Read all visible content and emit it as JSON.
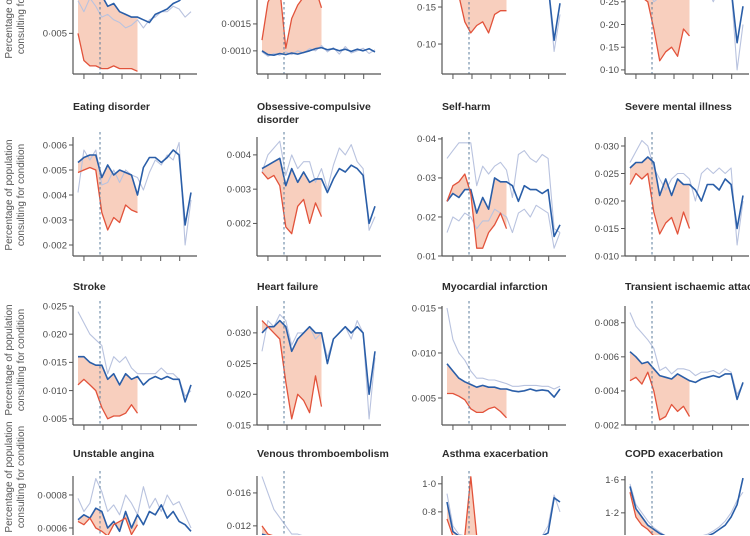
{
  "y_axis_label": [
    "Percentage of population",
    "consulting for condition"
  ],
  "colors": {
    "observed": "#2a5ea8",
    "previous_years": "#b9c3df",
    "lower_bound": "#e2533b",
    "fill": "#f6bfa8",
    "intervention_line": "#5b7c9c"
  },
  "chart_data": [
    {
      "type": "line",
      "title": "",
      "ylim": [
        0.0035,
        0.0066
      ],
      "yticks": [
        0.005
      ],
      "yticklabels": [
        "0·005"
      ],
      "observed": [
        0.0066,
        0.0064,
        0.0066,
        0.0063,
        0.0064,
        0.006,
        0.0061,
        0.0058,
        0.0057,
        0.0056,
        0.0056,
        0.0055,
        0.0054,
        0.0057,
        0.0058,
        0.0059,
        0.0061,
        0.0062,
        0.0064,
        0.0067
      ],
      "lower": [
        0.005,
        0.004,
        0.0038,
        0.0038,
        0.0037,
        0.0037,
        0.0038,
        0.0037,
        0.0037,
        0.0037,
        0.0036
      ],
      "previous_years": [
        [
          0.0062,
          0.0058,
          0.0063,
          0.006,
          0.0056,
          0.0057,
          0.0055,
          0.0054,
          0.0052,
          0.0053,
          0.0055,
          0.0052,
          0.0055,
          0.0056,
          0.0058,
          0.0058,
          0.006,
          0.0059,
          0.0056,
          0.0058
        ]
      ]
    },
    {
      "type": "line",
      "title": "",
      "ylim": [
        0.00057,
        0.00213
      ],
      "yticks": [
        0.0015,
        0.001
      ],
      "yticklabels": [
        "0·0015",
        "0·0010"
      ],
      "observed": [
        0.001,
        0.00093,
        0.00092,
        0.00095,
        0.00093,
        0.00096,
        0.00094,
        0.00097,
        0.001,
        0.00104,
        0.00106,
        0.00102,
        0.00104,
        0.001,
        0.00103,
        0.00099,
        0.00103,
        0.001,
        0.00104,
        0.00098
      ],
      "lower": [
        0.0012,
        0.0019,
        0.00215,
        0.00215,
        0.00105,
        0.0016,
        0.00185,
        0.002,
        0.00215,
        0.00215,
        0.0018
      ],
      "previous_years": [
        [
          0.00098,
          0.0009,
          0.00095,
          0.00092,
          0.00098,
          0.00093,
          0.001,
          0.00096,
          0.00104,
          0.001,
          0.0011,
          0.00098,
          0.00106,
          0.00094,
          0.00108,
          0.00096,
          0.001,
          0.00105,
          0.00095,
          0.00102
        ]
      ]
    },
    {
      "type": "line",
      "title": "",
      "ylim": [
        0.0595,
        0.173
      ],
      "yticks": [
        0.15,
        0.1
      ],
      "yticklabels": [
        "0·15",
        "0·10"
      ],
      "observed": [
        0.18,
        0.18,
        0.18,
        0.18,
        0.18,
        0.18,
        0.18,
        0.18,
        0.18,
        0.165,
        0.18,
        0.18,
        0.18,
        0.18,
        0.18,
        0.18,
        0.18,
        0.18,
        0.105,
        0.155
      ],
      "lower": [
        0.18,
        0.18,
        0.165,
        0.13,
        0.115,
        0.125,
        0.13,
        0.115,
        0.14,
        0.145,
        0.145
      ],
      "previous_years": [
        [
          0.18,
          0.18,
          0.18,
          0.18,
          0.18,
          0.18,
          0.18,
          0.18,
          0.18,
          0.17,
          0.18,
          0.18,
          0.18,
          0.18,
          0.18,
          0.18,
          0.18,
          0.18,
          0.09,
          0.14
        ]
      ]
    },
    {
      "type": "line",
      "title": "",
      "ylim": [
        0.091,
        0.276
      ],
      "yticks": [
        0.25,
        0.2,
        0.15,
        0.1
      ],
      "yticklabels": [
        "0·25",
        "0·20",
        "0·15",
        "0·10"
      ],
      "observed": [
        0.28,
        0.28,
        0.28,
        0.28,
        0.26,
        0.27,
        0.28,
        0.28,
        0.28,
        0.28,
        0.28,
        0.28,
        0.28,
        0.28,
        0.26,
        0.28,
        0.28,
        0.28,
        0.16,
        0.24
      ],
      "lower": [
        0.28,
        0.26,
        0.26,
        0.25,
        0.19,
        0.12,
        0.14,
        0.15,
        0.13,
        0.19,
        0.175
      ],
      "previous_years": [
        [
          0.28,
          0.28,
          0.28,
          0.28,
          0.25,
          0.26,
          0.28,
          0.28,
          0.28,
          0.28,
          0.28,
          0.28,
          0.28,
          0.28,
          0.25,
          0.28,
          0.28,
          0.28,
          0.1,
          0.2
        ]
      ]
    },
    {
      "type": "line",
      "title": "Eating disorder",
      "ylim": [
        0.00156,
        0.0064
      ],
      "yticks": [
        0.006,
        0.005,
        0.004,
        0.003,
        0.002
      ],
      "yticklabels": [
        "0·006",
        "0·005",
        "0·004",
        "0·003",
        "0·002"
      ],
      "observed": [
        0.0053,
        0.0055,
        0.0056,
        0.0056,
        0.0047,
        0.0052,
        0.0048,
        0.005,
        0.0049,
        0.0048,
        0.004,
        0.0051,
        0.0055,
        0.0055,
        0.0053,
        0.0055,
        0.0058,
        0.0056,
        0.0028,
        0.0041
      ],
      "lower": [
        0.0049,
        0.005,
        0.0051,
        0.005,
        0.0033,
        0.0026,
        0.0031,
        0.0029,
        0.0036,
        0.0034,
        0.0033
      ],
      "previous_years": [
        [
          0.0041,
          0.0058,
          0.0054,
          0.0058,
          0.0044,
          0.0045,
          0.005,
          0.0045,
          0.005,
          0.0048,
          0.0047,
          0.0042,
          0.0049,
          0.0054,
          0.0052,
          0.0056,
          0.0054,
          0.0061,
          0.002,
          0.0038
        ]
      ]
    },
    {
      "type": "line",
      "title": "Obsessive-compulsive",
      "title_line2": "disorder",
      "ylim": [
        0.00105,
        0.00458
      ],
      "yticks": [
        0.004,
        0.003,
        0.002
      ],
      "yticklabels": [
        "0·004",
        "0·003",
        "0·002"
      ],
      "observed": [
        0.0036,
        0.0037,
        0.0038,
        0.0039,
        0.0031,
        0.0036,
        0.0032,
        0.0035,
        0.0032,
        0.0033,
        0.0033,
        0.0029,
        0.0033,
        0.0036,
        0.0035,
        0.0037,
        0.0036,
        0.0034,
        0.002,
        0.0025
      ],
      "lower": [
        0.0035,
        0.0033,
        0.0034,
        0.0031,
        0.0019,
        0.0017,
        0.0025,
        0.0027,
        0.002,
        0.0026,
        0.0022
      ],
      "previous_years": [
        [
          0.0035,
          0.004,
          0.0042,
          0.0044,
          0.0034,
          0.004,
          0.0036,
          0.0038,
          0.0038,
          0.0032,
          0.0036,
          0.003,
          0.0037,
          0.0042,
          0.004,
          0.0043,
          0.0038,
          0.0036,
          0.0018,
          0.0022
        ]
      ]
    },
    {
      "type": "line",
      "title": "Self-harm",
      "ylim": [
        0.01,
        0.041
      ],
      "yticks": [
        0.04,
        0.03,
        0.02,
        0.01
      ],
      "yticklabels": [
        "0·04",
        "0·03",
        "0·02",
        "0·01"
      ],
      "observed": [
        0.024,
        0.026,
        0.025,
        0.027,
        0.027,
        0.021,
        0.025,
        0.022,
        0.03,
        0.029,
        0.029,
        0.028,
        0.024,
        0.028,
        0.027,
        0.027,
        0.026,
        0.027,
        0.015,
        0.018
      ],
      "lower": [
        0.024,
        0.028,
        0.029,
        0.031,
        0.026,
        0.012,
        0.012,
        0.016,
        0.018,
        0.021,
        0.017
      ],
      "previous_years": [
        [
          0.035,
          0.037,
          0.039,
          0.039,
          0.039,
          0.028,
          0.033,
          0.031,
          0.033,
          0.034,
          0.032,
          0.025,
          0.036,
          0.037,
          0.035,
          0.034,
          0.036,
          0.035,
          0.017,
          0.016
        ],
        [
          0.016,
          0.02,
          0.019,
          0.021,
          0.02,
          0.017,
          0.019,
          0.019,
          0.022,
          0.021,
          0.02,
          0.016,
          0.021,
          0.022,
          0.02,
          0.023,
          0.022,
          0.021,
          0.012,
          0.016
        ]
      ]
    },
    {
      "type": "line",
      "title": "Severe mental illness",
      "ylim": [
        0.01,
        0.032
      ],
      "yticks": [
        0.03,
        0.025,
        0.02,
        0.015,
        0.01
      ],
      "yticklabels": [
        "0·030",
        "0·025",
        "0·020",
        "0·015",
        "0·010"
      ],
      "observed": [
        0.026,
        0.027,
        0.027,
        0.028,
        0.027,
        0.021,
        0.024,
        0.021,
        0.024,
        0.023,
        0.023,
        0.022,
        0.02,
        0.023,
        0.023,
        0.022,
        0.024,
        0.023,
        0.015,
        0.021
      ],
      "lower": [
        0.023,
        0.025,
        0.024,
        0.025,
        0.018,
        0.014,
        0.016,
        0.017,
        0.014,
        0.018,
        0.015
      ],
      "previous_years": [
        [
          0.027,
          0.029,
          0.031,
          0.03,
          0.026,
          0.024,
          0.022,
          0.024,
          0.025,
          0.025,
          0.024,
          0.02,
          0.025,
          0.026,
          0.025,
          0.026,
          0.025,
          0.026,
          0.012,
          0.02
        ]
      ]
    },
    {
      "type": "line",
      "title": "Stroke",
      "ylim": [
        0.0039,
        0.02535
      ],
      "yticks": [
        0.025,
        0.02,
        0.015,
        0.01,
        0.005
      ],
      "yticklabels": [
        "0·025",
        "0·020",
        "0·015",
        "0·010",
        "0·005"
      ],
      "observed": [
        0.016,
        0.016,
        0.015,
        0.0145,
        0.0145,
        0.012,
        0.013,
        0.011,
        0.013,
        0.012,
        0.0125,
        0.011,
        0.012,
        0.0125,
        0.012,
        0.0125,
        0.012,
        0.012,
        0.008,
        0.011
      ],
      "lower": [
        0.011,
        0.012,
        0.011,
        0.01,
        0.007,
        0.005,
        0.0055,
        0.0055,
        0.006,
        0.0075,
        0.006
      ],
      "previous_years": [
        [
          0.024,
          0.022,
          0.02,
          0.019,
          0.018,
          0.013,
          0.016,
          0.015,
          0.016,
          0.014,
          0.013,
          0.013,
          0.013,
          0.013,
          0.014,
          0.013,
          0.013,
          0.012,
          0.009,
          0.01
        ]
      ]
    },
    {
      "type": "line",
      "title": "Heart failure",
      "ylim": [
        0.015,
        0.0347
      ],
      "yticks": [
        0.03,
        0.025,
        0.02,
        0.015
      ],
      "yticklabels": [
        "0·030",
        "0·025",
        "0·020",
        "0·015"
      ],
      "observed": [
        0.03,
        0.031,
        0.031,
        0.032,
        0.031,
        0.027,
        0.029,
        0.03,
        0.031,
        0.03,
        0.03,
        0.025,
        0.029,
        0.03,
        0.031,
        0.03,
        0.031,
        0.03,
        0.02,
        0.027
      ],
      "lower": [
        0.032,
        0.031,
        0.03,
        0.029,
        0.022,
        0.016,
        0.02,
        0.019,
        0.017,
        0.023,
        0.018
      ],
      "previous_years": [
        [
          0.027,
          0.032,
          0.031,
          0.033,
          0.032,
          0.028,
          0.03,
          0.03,
          0.031,
          0.029,
          0.03,
          0.026,
          0.029,
          0.03,
          0.031,
          0.029,
          0.032,
          0.03,
          0.016,
          0.026
        ]
      ]
    },
    {
      "type": "line",
      "title": "Myocardial infarction",
      "ylim": [
        0.002,
        0.01544
      ],
      "yticks": [
        0.015,
        0.01,
        0.005
      ],
      "yticklabels": [
        "0·015",
        "0·010",
        "0·005"
      ],
      "observed": [
        0.0088,
        0.008,
        0.0072,
        0.0068,
        0.0065,
        0.0062,
        0.0064,
        0.0062,
        0.0062,
        0.006,
        0.006,
        0.0058,
        0.0057,
        0.0058,
        0.006,
        0.0058,
        0.0059,
        0.0058,
        0.0051,
        0.006
      ],
      "lower": [
        0.0055,
        0.0055,
        0.0052,
        0.0048,
        0.0038,
        0.0034,
        0.0034,
        0.0038,
        0.004,
        0.0035,
        0.0028
      ],
      "previous_years": [
        [
          0.015,
          0.0115,
          0.01,
          0.0092,
          0.008,
          0.0072,
          0.0072,
          0.007,
          0.007,
          0.0068,
          0.0066,
          0.0063,
          0.0063,
          0.0064,
          0.0064,
          0.0064,
          0.0063,
          0.0063,
          0.006,
          0.0063
        ]
      ]
    },
    {
      "type": "line",
      "title": "Transient ischaemic attack",
      "ylim": [
        0.002,
        0.0091
      ],
      "yticks": [
        0.008,
        0.006,
        0.004,
        0.002
      ],
      "yticklabels": [
        "0·008",
        "0·006",
        "0·004",
        "0·002"
      ],
      "observed": [
        0.0063,
        0.006,
        0.0056,
        0.0057,
        0.0053,
        0.0049,
        0.0048,
        0.0047,
        0.005,
        0.0048,
        0.0046,
        0.0045,
        0.0047,
        0.0048,
        0.0049,
        0.0048,
        0.005,
        0.005,
        0.0035,
        0.0045
      ],
      "lower": [
        0.0046,
        0.0048,
        0.0044,
        0.0051,
        0.004,
        0.0023,
        0.0025,
        0.0032,
        0.0028,
        0.0031,
        0.0025
      ],
      "previous_years": [
        [
          0.0086,
          0.0078,
          0.0074,
          0.007,
          0.0065,
          0.0052,
          0.0054,
          0.005,
          0.0053,
          0.0053,
          0.0052,
          0.0049,
          0.0051,
          0.0051,
          0.0052,
          0.005,
          0.0053,
          0.0051,
          0.0038,
          0.0044
        ]
      ]
    },
    {
      "type": "line",
      "title": "Unstable angina",
      "ylim": [
        0.000194,
        0.000927
      ],
      "yticks": [
        0.0008,
        0.0006
      ],
      "yticklabels": [
        "0·0008",
        "0·0006"
      ],
      "observed": [
        0.00065,
        0.00068,
        0.00066,
        0.00072,
        0.0007,
        0.0006,
        0.00064,
        0.00058,
        0.0007,
        0.0006,
        0.00068,
        0.00062,
        0.0007,
        0.00068,
        0.00074,
        0.00066,
        0.0007,
        0.00064,
        0.00062,
        0.00058
      ],
      "lower": [
        0.00064,
        0.00062,
        0.00066,
        0.0006,
        0.00058,
        0.0005,
        0.00062,
        0.00064,
        0.00066,
        0.00056,
        0.00062
      ],
      "previous_years": [
        [
          0.00078,
          0.0007,
          0.00075,
          0.0009,
          0.00082,
          0.0007,
          0.00074,
          0.00068,
          0.0008,
          0.00075,
          0.00068,
          0.00085,
          0.00072,
          0.00078,
          0.0007,
          0.0008,
          0.00074,
          0.00076,
          0.00068,
          0.0006
        ]
      ]
    },
    {
      "type": "line",
      "title": "Venous thromboembolism",
      "ylim": [
        0.0036,
        0.0183
      ],
      "yticks": [
        0.016,
        0.012
      ],
      "yticklabels": [
        "0·016",
        "0·012"
      ],
      "observed": [
        0.011,
        0.01,
        0.0095,
        0.0095,
        0.009,
        0.0085,
        0.0085,
        0.009,
        0.009,
        0.009,
        0.009,
        0.009,
        0.009,
        0.009,
        0.009,
        0.009,
        0.009,
        0.009,
        0.008,
        0.008
      ],
      "lower": [
        0.012,
        0.011,
        0.01,
        0.0095,
        0.008,
        0.007,
        0.007,
        0.0075,
        0.0075,
        0.0075,
        0.0075
      ],
      "previous_years": [
        [
          0.018,
          0.016,
          0.014,
          0.013,
          0.012,
          0.011,
          0.011,
          0.01,
          0.01,
          0.01,
          0.01,
          0.01,
          0.01,
          0.01,
          0.01,
          0.01,
          0.01,
          0.01,
          0.009,
          0.009
        ]
      ]
    },
    {
      "type": "line",
      "title": "Asthma exacerbation",
      "ylim": [
        0.207,
        1.07
      ],
      "yticks": [
        1.0,
        0.8
      ],
      "yticklabels": [
        "1·0",
        "0·8"
      ],
      "observed": [
        0.87,
        0.66,
        0.62,
        0.58,
        0.52,
        0.45,
        0.4,
        0.38,
        0.36,
        0.36,
        0.37,
        0.38,
        0.4,
        0.42,
        0.45,
        0.5,
        0.55,
        0.65,
        0.9,
        0.87
      ],
      "lower": [
        0.75,
        0.62,
        0.6,
        0.6,
        1.05,
        0.5,
        0.3,
        0.3,
        0.3,
        0.3,
        0.3
      ],
      "previous_years": [
        [
          0.93,
          0.7,
          0.64,
          0.6,
          0.55,
          0.47,
          0.42,
          0.4,
          0.38,
          0.38,
          0.39,
          0.4,
          0.42,
          0.45,
          0.48,
          0.52,
          0.58,
          0.7,
          0.92,
          0.8
        ]
      ]
    },
    {
      "type": "line",
      "title": "COPD exacerbation",
      "ylim": [
        0.206,
        1.67
      ],
      "yticks": [
        1.6,
        1.2
      ],
      "yticklabels": [
        "1·6",
        "1·2"
      ],
      "observed": [
        1.52,
        1.25,
        1.15,
        1.05,
        1.0,
        0.95,
        0.9,
        0.85,
        0.8,
        0.8,
        0.82,
        0.85,
        0.88,
        0.9,
        0.95,
        1.0,
        1.05,
        1.15,
        1.3,
        1.62
      ],
      "lower": [
        1.45,
        1.15,
        1.05,
        1.0,
        0.9,
        0.7,
        0.6,
        0.6,
        0.6,
        0.6,
        0.6
      ],
      "previous_years": [
        [
          1.55,
          1.3,
          1.2,
          1.1,
          1.02,
          0.97,
          0.92,
          0.88,
          0.84,
          0.84,
          0.86,
          0.88,
          0.9,
          0.94,
          0.98,
          1.03,
          1.1,
          1.2,
          1.35,
          1.45
        ]
      ]
    }
  ]
}
